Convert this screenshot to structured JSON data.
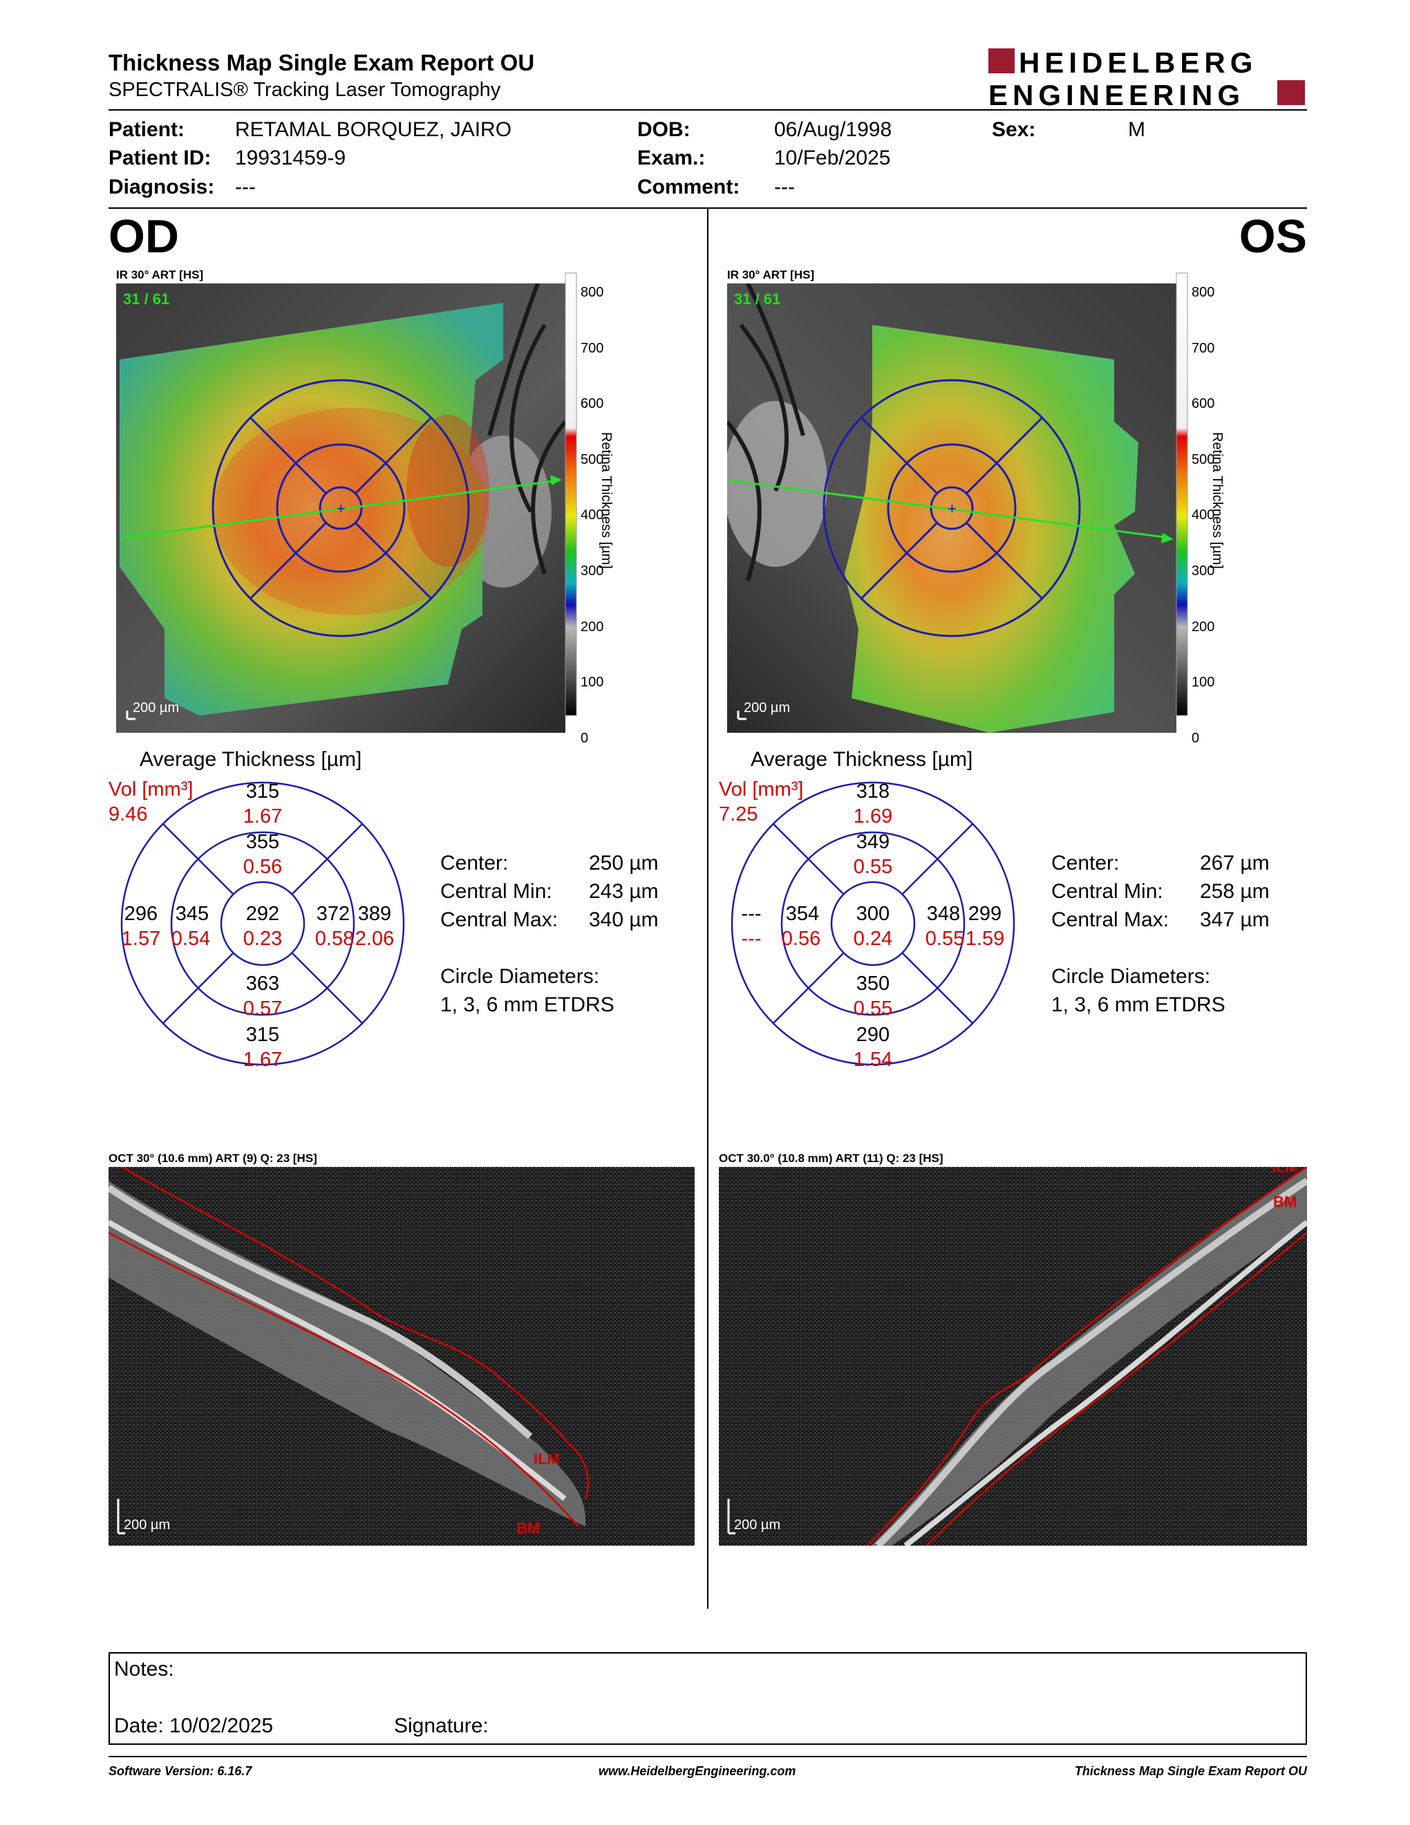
{
  "report": {
    "title": "Thickness Map Single Exam Report OU",
    "subtitle": "SPECTRALIS® Tracking Laser Tomography",
    "logo_line1": "HEIDELBERG",
    "logo_line2": "ENGINEERING",
    "logo_color": "#9b1b30"
  },
  "patient": {
    "patient_label": "Patient:",
    "patient_value": "RETAMAL BORQUEZ, JAIRO",
    "id_label": "Patient ID:",
    "id_value": "19931459-9",
    "diagnosis_label": "Diagnosis:",
    "diagnosis_value": "---",
    "dob_label": "DOB:",
    "dob_value": "06/Aug/1998",
    "exam_label": "Exam.:",
    "exam_value": "10/Feb/2025",
    "comment_label": "Comment:",
    "comment_value": "---",
    "sex_label": "Sex:",
    "sex_value": "M"
  },
  "scale": {
    "ticks": [
      "800",
      "700",
      "600",
      "500",
      "400",
      "300",
      "200",
      "100",
      "0"
    ],
    "axis_label": "Retina Thickness [µm]"
  },
  "od": {
    "eye": "OD",
    "ir_label": "IR 30° ART [HS]",
    "counter": "31 / 61",
    "scalebar": "200 µm",
    "avg_title": "Average Thickness [µm]",
    "vol_label": "Vol [mm³]",
    "vol_value": "9.46",
    "sectors": {
      "center": [
        "292",
        "0.23"
      ],
      "inner_sup": [
        "355",
        "0.56"
      ],
      "inner_inf": [
        "363",
        "0.57"
      ],
      "inner_left": [
        "345",
        "0.54"
      ],
      "inner_right": [
        "372",
        "0.58"
      ],
      "outer_sup": [
        "315",
        "1.67"
      ],
      "outer_inf": [
        "315",
        "1.67"
      ],
      "outer_left": [
        "296",
        "1.57"
      ],
      "outer_right": [
        "389",
        "2.06"
      ]
    },
    "center_label": "Center:",
    "center_value": "250 µm",
    "cmin_label": "Central Min:",
    "cmin_value": "243 µm",
    "cmax_label": "Central Max:",
    "cmax_value": "340 µm",
    "circle_label": "Circle Diameters:",
    "circle_value": "1, 3, 6 mm ETDRS",
    "oct_label": "OCT 30° (10.6 mm) ART (9) Q: 23 [HS]",
    "oct_scalebar": "200 µm",
    "ilm": "ILM",
    "bm": "BM"
  },
  "os": {
    "eye": "OS",
    "ir_label": "IR 30° ART [HS]",
    "counter": "31 / 61",
    "scalebar": "200 µm",
    "avg_title": "Average Thickness [µm]",
    "vol_label": "Vol [mm³]",
    "vol_value": "7.25",
    "sectors": {
      "center": [
        "300",
        "0.24"
      ],
      "inner_sup": [
        "349",
        "0.55"
      ],
      "inner_inf": [
        "350",
        "0.55"
      ],
      "inner_left": [
        "354",
        "0.56"
      ],
      "inner_right": [
        "348",
        "0.55"
      ],
      "outer_sup": [
        "318",
        "1.69"
      ],
      "outer_inf": [
        "290",
        "1.54"
      ],
      "outer_left": [
        "---",
        "---"
      ],
      "outer_right": [
        "299",
        "1.59"
      ]
    },
    "center_label": "Center:",
    "center_value": "267 µm",
    "cmin_label": "Central Min:",
    "cmin_value": "258 µm",
    "cmax_label": "Central Max:",
    "cmax_value": "347 µm",
    "circle_label": "Circle Diameters:",
    "circle_value": "1, 3, 6 mm ETDRS",
    "oct_label": "OCT 30.0° (10.8 mm) ART (11) Q: 23 [HS]",
    "oct_scalebar": "200 µm",
    "ilm": "ILM",
    "bm": "BM"
  },
  "notes": {
    "notes_label": "Notes:",
    "date_label": "Date: 10/02/2025",
    "signature_label": "Signature:"
  },
  "footer": {
    "software": "Software Version: 6.16.7",
    "website": "www.HeidelbergEngineering.com",
    "report_name": "Thickness Map Single Exam Report OU"
  }
}
